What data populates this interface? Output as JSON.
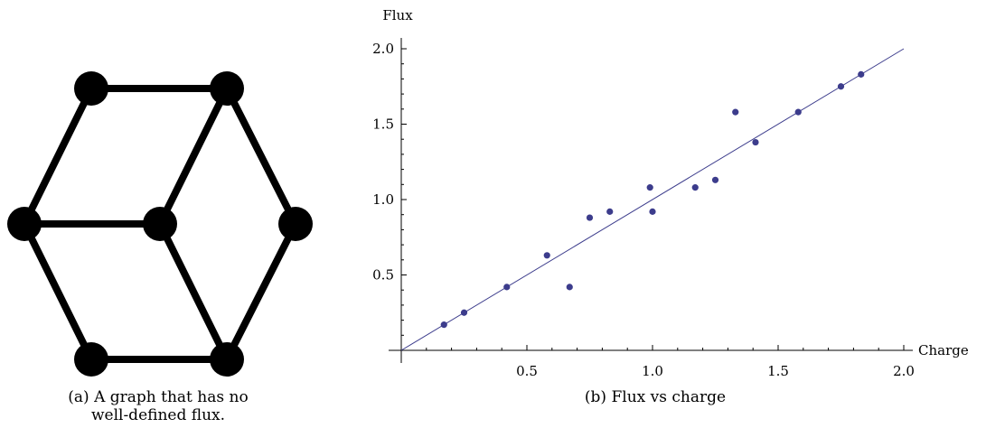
{
  "captions": {
    "a_line1": "(a) A graph that has no",
    "a_line2": "well-defined flux.",
    "b": "(b) Flux vs charge"
  },
  "graph": {
    "nodes": [
      {
        "id": "top-left"
      },
      {
        "id": "top-right"
      },
      {
        "id": "left"
      },
      {
        "id": "center"
      },
      {
        "id": "right"
      },
      {
        "id": "bottom-left"
      },
      {
        "id": "bottom-right"
      }
    ],
    "edges": [
      [
        "top-left",
        "top-right"
      ],
      [
        "top-left",
        "left"
      ],
      [
        "top-right",
        "center"
      ],
      [
        "top-right",
        "right"
      ],
      [
        "left",
        "center"
      ],
      [
        "left",
        "bottom-left"
      ],
      [
        "center",
        "bottom-right"
      ],
      [
        "right",
        "bottom-right"
      ],
      [
        "bottom-left",
        "bottom-right"
      ]
    ],
    "colors": {
      "node": "#000000",
      "edge": "#000000"
    }
  },
  "chart_data": {
    "type": "scatter",
    "xlabel": "Charge",
    "ylabel": "Flux",
    "xlim": [
      0,
      2.0
    ],
    "ylim": [
      0,
      2.0
    ],
    "xticks": [
      0.5,
      1.0,
      1.5,
      2.0
    ],
    "yticks": [
      0.5,
      1.0,
      1.5,
      2.0
    ],
    "xtick_labels": [
      "0.5",
      "1.0",
      "1.5",
      "2.0"
    ],
    "ytick_labels": [
      "0.5",
      "1.0",
      "1.5",
      "2.0"
    ],
    "grid": false,
    "point_color": "#3c3c8c",
    "line_color": "#3c3c8c",
    "points": [
      {
        "x": 0.17,
        "y": 0.17
      },
      {
        "x": 0.25,
        "y": 0.25
      },
      {
        "x": 0.42,
        "y": 0.42
      },
      {
        "x": 0.58,
        "y": 0.63
      },
      {
        "x": 0.67,
        "y": 0.42
      },
      {
        "x": 0.75,
        "y": 0.88
      },
      {
        "x": 0.83,
        "y": 0.92
      },
      {
        "x": 0.99,
        "y": 1.08
      },
      {
        "x": 1.0,
        "y": 0.92
      },
      {
        "x": 1.17,
        "y": 1.08
      },
      {
        "x": 1.25,
        "y": 1.13
      },
      {
        "x": 1.33,
        "y": 1.58
      },
      {
        "x": 1.41,
        "y": 1.38
      },
      {
        "x": 1.58,
        "y": 1.58
      },
      {
        "x": 1.75,
        "y": 1.75
      },
      {
        "x": 1.83,
        "y": 1.83
      }
    ],
    "fit_line": {
      "x": [
        0,
        2.0
      ],
      "y": [
        0,
        2.0
      ]
    }
  }
}
